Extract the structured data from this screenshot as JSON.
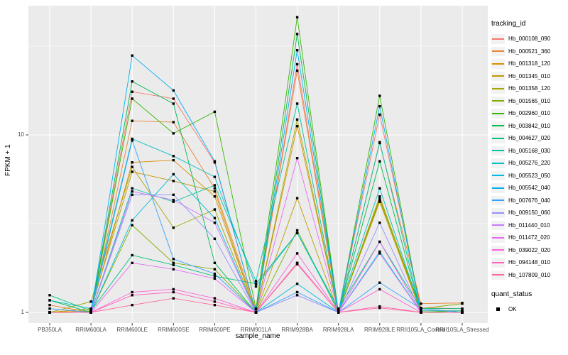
{
  "chart_data": {
    "type": "line",
    "title": "",
    "xlabel": "sample_name",
    "ylabel": "FPKM + 1",
    "y_scale": "log10",
    "ylim": [
      0.87,
      53
    ],
    "y_ticks": [
      {
        "label": "10",
        "value": 10
      },
      {
        "label": "1",
        "value": 1
      }
    ],
    "y_minor_gridlines": [
      3.162,
      31.623
    ],
    "grid": "on",
    "legend_title": "tracking_id",
    "legend_position": "right",
    "point_legend": {
      "title": "quant_status",
      "label": "OK"
    },
    "x_categories": [
      "PB350LA",
      "RRIM600LA",
      "RRIM600LE",
      "RRIM600SE",
      "RRIM600PE",
      "RRIM901LA",
      "RRIM928BA",
      "RRIM928LA",
      "RRIM928LE",
      "RRII105LA_Control",
      "RRII105LA_Stressed"
    ],
    "series": [
      {
        "name": "Hb_000108_090",
        "color": "#F8766D",
        "values": [
          1.0,
          1.0,
          17.5,
          16.0,
          7.0,
          1.0,
          25.0,
          1.0,
          13.0,
          1.06,
          1.05
        ]
      },
      {
        "name": "Hb_000521_360",
        "color": "#EA8331",
        "values": [
          1.1,
          1.0,
          12.0,
          11.8,
          5.0,
          1.04,
          23.0,
          1.0,
          9.0,
          1.12,
          1.13
        ]
      },
      {
        "name": "Hb_001318_120",
        "color": "#D89000",
        "values": [
          1.0,
          1.02,
          7.0,
          7.2,
          4.5,
          1.0,
          11.2,
          1.0,
          4.5,
          1.02,
          1.02
        ]
      },
      {
        "name": "Hb_001345_010",
        "color": "#C09B00",
        "values": [
          1.0,
          1.05,
          6.2,
          5.5,
          4.8,
          1.0,
          4.4,
          1.0,
          4.2,
          1.0,
          1.0
        ]
      },
      {
        "name": "Hb_001358_120",
        "color": "#A3A500",
        "values": [
          1.0,
          1.15,
          6.6,
          3.0,
          3.8,
          1.0,
          12.2,
          1.0,
          4.3,
          1.02,
          1.02
        ]
      },
      {
        "name": "Hb_001565_010",
        "color": "#7CAE00",
        "values": [
          1.0,
          1.0,
          3.1,
          1.9,
          1.75,
          1.0,
          2.9,
          1.0,
          4.4,
          1.05,
          1.12
        ]
      },
      {
        "name": "Hb_002960_010",
        "color": "#39B600",
        "values": [
          1.0,
          1.0,
          16.0,
          10.2,
          13.5,
          1.05,
          46.0,
          1.0,
          16.6,
          1.0,
          1.02
        ]
      },
      {
        "name": "Hb_003842_010",
        "color": "#00BB4E",
        "values": [
          1.17,
          1.0,
          20.0,
          15.0,
          1.9,
          1.0,
          37.0,
          1.0,
          7.1,
          1.0,
          1.0
        ]
      },
      {
        "name": "Hb_004627_020",
        "color": "#00BF7D",
        "values": [
          1.25,
          1.02,
          2.1,
          1.85,
          1.6,
          1.45,
          2.8,
          1.05,
          2.5,
          1.05,
          1.05
        ]
      },
      {
        "name": "Hb_005168_030",
        "color": "#00C1A3",
        "values": [
          1.0,
          1.0,
          5.0,
          4.2,
          5.2,
          1.5,
          15.0,
          1.0,
          9.1,
          1.0,
          1.0
        ]
      },
      {
        "name": "Hb_005276_220",
        "color": "#00BFC4",
        "values": [
          1.17,
          1.05,
          9.5,
          7.6,
          5.8,
          1.4,
          2.8,
          1.02,
          5.0,
          1.02,
          1.02
        ]
      },
      {
        "name": "Hb_005523_050",
        "color": "#00BAE0",
        "values": [
          1.0,
          1.0,
          3.3,
          6.0,
          3.4,
          1.0,
          1.45,
          1.0,
          2.2,
          1.0,
          1.0
        ]
      },
      {
        "name": "Hb_005542_040",
        "color": "#00B0F6",
        "values": [
          1.0,
          1.0,
          28.0,
          17.8,
          7.1,
          1.0,
          30.0,
          1.0,
          14.5,
          1.0,
          1.0
        ]
      },
      {
        "name": "Hb_007676_040",
        "color": "#35A2FF",
        "values": [
          1.05,
          1.0,
          9.3,
          2.0,
          1.65,
          1.0,
          1.3,
          1.0,
          1.47,
          1.05,
          1.0
        ]
      },
      {
        "name": "Hb_009150_060",
        "color": "#9590FF",
        "values": [
          1.0,
          1.0,
          4.6,
          4.6,
          2.6,
          1.0,
          1.25,
          1.0,
          3.2,
          1.0,
          1.0
        ]
      },
      {
        "name": "Hb_011440_010",
        "color": "#C77CFF",
        "values": [
          1.0,
          1.0,
          4.8,
          4.3,
          3.2,
          1.0,
          1.9,
          1.0,
          2.15,
          1.0,
          1.0
        ]
      },
      {
        "name": "Hb_011472_020",
        "color": "#E76BF3",
        "values": [
          1.0,
          1.0,
          1.9,
          1.75,
          1.55,
          1.0,
          7.4,
          1.0,
          2.5,
          1.0,
          1.0
        ]
      },
      {
        "name": "Hb_039022_020",
        "color": "#FA62DB",
        "values": [
          1.0,
          1.0,
          1.3,
          1.35,
          1.2,
          1.0,
          2.15,
          1.0,
          1.35,
          1.0,
          1.0
        ]
      },
      {
        "name": "Hb_094148_010",
        "color": "#FF62BC",
        "values": [
          1.0,
          1.0,
          1.25,
          1.3,
          1.15,
          1.0,
          1.9,
          1.0,
          1.08,
          1.0,
          1.0
        ]
      },
      {
        "name": "Hb_107809_010",
        "color": "#FF6A98",
        "values": [
          1.0,
          1.0,
          1.1,
          1.2,
          1.1,
          1.0,
          1.87,
          1.0,
          1.06,
          1.0,
          1.0
        ]
      }
    ],
    "colors": {
      "panel_background": "#EBEBEB",
      "gridline": "#FFFFFF",
      "point": "#000000",
      "tick_text": "#4D4D4D",
      "axis_title_text": "#000000",
      "legend_key_background": "#F2F2F2",
      "tick_mark": "#333333"
    }
  }
}
